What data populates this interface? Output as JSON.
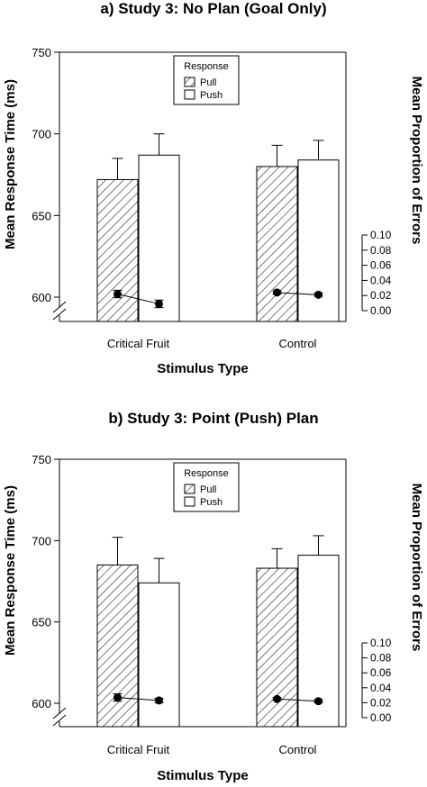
{
  "chart_data": [
    {
      "type": "bar",
      "title": "a)  Study 3: No Plan (Goal Only)",
      "xlabel": "Stimulus Type",
      "ylabel": "Mean Response Time (ms)",
      "ylabel_right": "Mean Proportion of Errors",
      "categories": [
        "Critical Fruit",
        "Control"
      ],
      "ylim": [
        575,
        750
      ],
      "yticks": [
        "600",
        "650",
        "700",
        "750"
      ],
      "y2lim": [
        0,
        0.1
      ],
      "y2ticks": [
        "0.00",
        "0.02",
        "0.04",
        "0.06",
        "0.08",
        "0.10"
      ],
      "axis_break": true,
      "legend": {
        "title": "Response",
        "position": "top-center",
        "items": [
          "Pull",
          "Push"
        ]
      },
      "series": [
        {
          "name": "Pull",
          "fill": "hatched",
          "values": [
            672,
            680
          ],
          "errors": [
            13,
            13
          ]
        },
        {
          "name": "Push",
          "fill": "white",
          "values": [
            687,
            684
          ],
          "errors": [
            13,
            12
          ]
        }
      ],
      "error_rates": [
        {
          "category": "Critical Fruit",
          "pull": 0.022,
          "pull_err": 0.005,
          "push": 0.009,
          "push_err": 0.005
        },
        {
          "category": "Control",
          "pull": 0.024,
          "pull_err": 0.002,
          "push": 0.021,
          "push_err": 0.002
        }
      ]
    },
    {
      "type": "bar",
      "title": "b)  Study 3: Point (Push) Plan",
      "xlabel": "Stimulus Type",
      "ylabel": "Mean Response Time (ms)",
      "ylabel_right": "Mean Proportion of Errors",
      "categories": [
        "Critical Fruit",
        "Control"
      ],
      "ylim": [
        575,
        750
      ],
      "yticks": [
        "600",
        "650",
        "700",
        "750"
      ],
      "y2lim": [
        0,
        0.1
      ],
      "y2ticks": [
        "0.00",
        "0.02",
        "0.04",
        "0.06",
        "0.08",
        "0.10"
      ],
      "axis_break": true,
      "legend": {
        "title": "Response",
        "position": "top-center",
        "items": [
          "Pull",
          "Push"
        ]
      },
      "series": [
        {
          "name": "Pull",
          "fill": "hatched",
          "values": [
            685,
            683
          ],
          "errors": [
            17,
            12
          ]
        },
        {
          "name": "Push",
          "fill": "white",
          "values": [
            674,
            691
          ],
          "errors": [
            15,
            12
          ]
        }
      ],
      "error_rates": [
        {
          "category": "Critical Fruit",
          "pull": 0.027,
          "pull_err": 0.005,
          "push": 0.023,
          "push_err": 0.003
        },
        {
          "category": "Control",
          "pull": 0.025,
          "pull_err": 0.002,
          "push": 0.022,
          "push_err": 0.002
        }
      ]
    }
  ]
}
